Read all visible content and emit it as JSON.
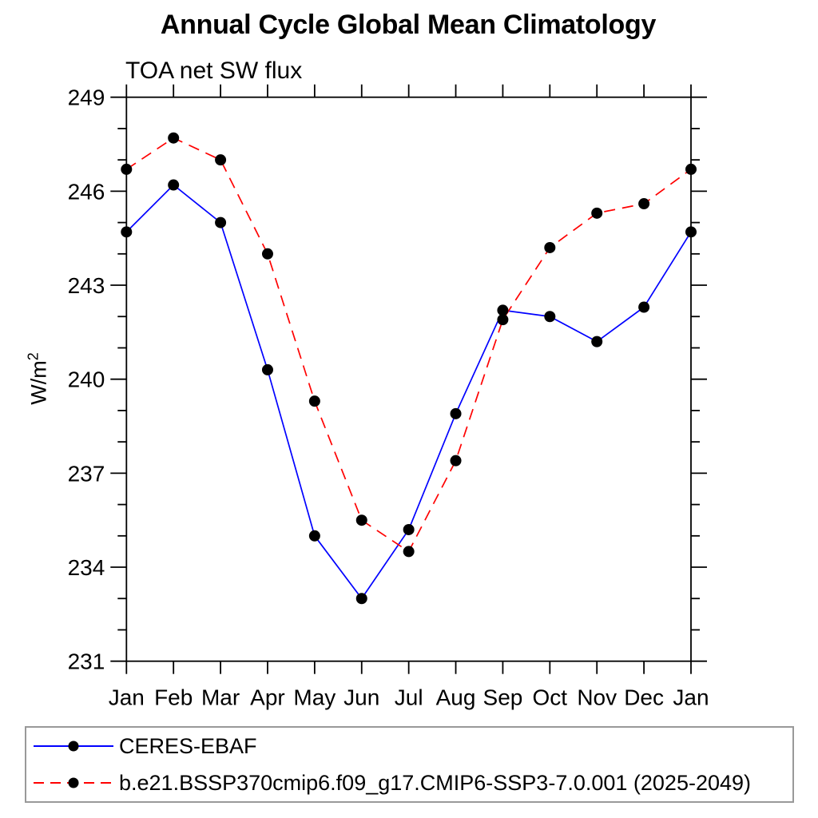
{
  "header": {
    "title": "Annual Cycle Global Mean Climatology",
    "subtitle": "TOA net SW flux"
  },
  "y_axis": {
    "label_base": "W/m",
    "label_exponent": "2"
  },
  "chart_data": {
    "type": "line",
    "title": "Annual Cycle Global Mean Climatology",
    "subtitle": "TOA net SW flux",
    "ylabel": "W/m²",
    "xlabel": "",
    "categories": [
      "Jan",
      "Feb",
      "Mar",
      "Apr",
      "May",
      "Jun",
      "Jul",
      "Aug",
      "Sep",
      "Oct",
      "Nov",
      "Dec",
      "Jan"
    ],
    "ylim": [
      231,
      249
    ],
    "ytick_major_step": 3,
    "ytick_minor_step": 1,
    "yticks_major": [
      231,
      234,
      237,
      240,
      243,
      246,
      249
    ],
    "grid": "off",
    "legend_position": "bottom",
    "axis_color": "#000000",
    "marker_color": "#000000",
    "series": [
      {
        "name": "CERES-EBAF",
        "color": "#0000ff",
        "style": "solid",
        "marker": "circle",
        "values": [
          244.7,
          246.2,
          245.0,
          240.3,
          235.0,
          233.0,
          235.2,
          238.9,
          242.2,
          242.0,
          241.2,
          242.3,
          244.7
        ]
      },
      {
        "name": "b.e21.BSSP370cmip6.f09_g17.CMIP6-SSP3-7.0.001 (2025-2049)",
        "color": "#ff0000",
        "style": "dashed",
        "marker": "circle",
        "values": [
          246.7,
          247.7,
          247.0,
          244.0,
          239.3,
          235.5,
          234.5,
          237.4,
          241.9,
          244.2,
          245.3,
          245.6,
          246.7
        ]
      }
    ]
  },
  "legend": {
    "entries": [
      {
        "label": "CERES-EBAF",
        "color": "#0000ff",
        "style": "solid",
        "marker_color": "#000000"
      },
      {
        "label": "b.e21.BSSP370cmip6.f09_g17.CMIP6-SSP3-7.0.001 (2025-2049)",
        "color": "#ff0000",
        "style": "dashed",
        "marker_color": "#000000"
      }
    ]
  }
}
